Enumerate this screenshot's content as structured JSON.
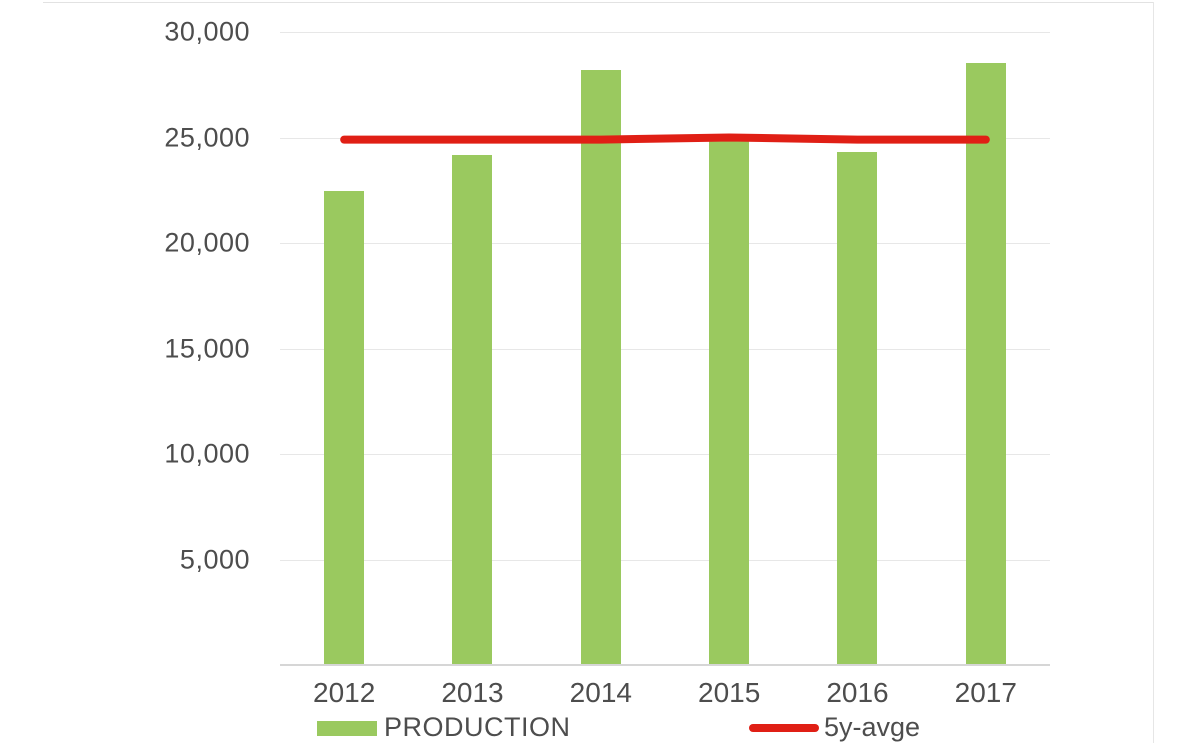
{
  "chart_data": {
    "type": "bar",
    "title": "",
    "xlabel": "",
    "ylabel": "",
    "categories": [
      "2012",
      "2013",
      "2014",
      "2015",
      "2016",
      "2017"
    ],
    "series": [
      {
        "name": "PRODUCTION",
        "type": "bar",
        "color": "#9ac95f",
        "values": [
          22450,
          24150,
          28200,
          24950,
          24300,
          28550
        ]
      },
      {
        "name": "5y-avge",
        "type": "line",
        "color": "#e01f15",
        "values": [
          24900,
          24900,
          24900,
          25000,
          24900,
          24900
        ]
      }
    ],
    "ylim": [
      0,
      30000
    ],
    "ytick_interval": 5000,
    "yticks": [
      {
        "value": 30000,
        "label": "30,000"
      },
      {
        "value": 25000,
        "label": "25,000"
      },
      {
        "value": 20000,
        "label": "20,000"
      },
      {
        "value": 15000,
        "label": "15,000"
      },
      {
        "value": 10000,
        "label": "10,000"
      },
      {
        "value": 5000,
        "label": "5,000"
      }
    ],
    "grid": true,
    "legend_position": "bottom"
  },
  "legend": {
    "production_label": "PRODUCTION",
    "avg_label": "5y-avge"
  },
  "colors": {
    "bar_green": "#9ac95f",
    "line_red": "#e01f15",
    "axis_text": "#4d4d4d",
    "gridline": "#e7e7e7",
    "axis_line": "#d6d6d6",
    "background": "#ffffff"
  }
}
